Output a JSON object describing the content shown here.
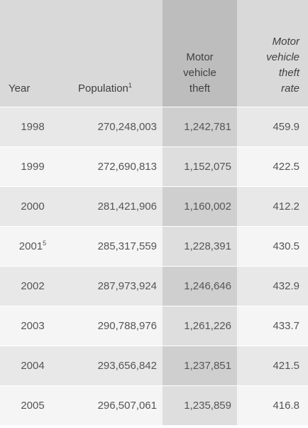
{
  "table": {
    "headers": {
      "year": "Year",
      "population": "Population",
      "population_sup": "1",
      "mvt_line1": "Motor",
      "mvt_line2": "vehicle",
      "mvt_line3": "theft",
      "rate_line1": "Motor",
      "rate_line2": "vehicle",
      "rate_line3": "theft",
      "rate_line4": "rate"
    },
    "rows": [
      {
        "year": "1998",
        "sup": "",
        "population": "270,248,003",
        "theft": "1,242,781",
        "rate": "459.9"
      },
      {
        "year": "1999",
        "sup": "",
        "population": "272,690,813",
        "theft": "1,152,075",
        "rate": "422.5"
      },
      {
        "year": "2000",
        "sup": "",
        "population": "281,421,906",
        "theft": "1,160,002",
        "rate": "412.2"
      },
      {
        "year": "2001",
        "sup": "5",
        "population": "285,317,559",
        "theft": "1,228,391",
        "rate": "430.5"
      },
      {
        "year": "2002",
        "sup": "",
        "population": "287,973,924",
        "theft": "1,246,646",
        "rate": "432.9"
      },
      {
        "year": "2003",
        "sup": "",
        "population": "290,788,976",
        "theft": "1,261,226",
        "rate": "433.7"
      },
      {
        "year": "2004",
        "sup": "",
        "population": "293,656,842",
        "theft": "1,237,851",
        "rate": "421.5"
      },
      {
        "year": "2005",
        "sup": "",
        "population": "296,507,061",
        "theft": "1,235,859",
        "rate": "416.8"
      }
    ]
  }
}
